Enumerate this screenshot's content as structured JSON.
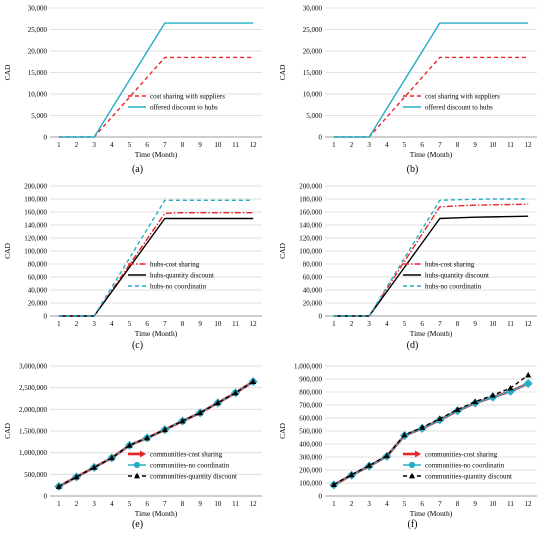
{
  "colors": {
    "red": "#e8262a",
    "cyan": "#23aec6",
    "black": "#000000",
    "grid": "#d9d9d9",
    "axis": "#7f7f7f",
    "diamond_fill": "#f4a0a0",
    "diamond_stroke": "#3aaec8"
  },
  "chart_data": [
    {
      "panel_label": "(a)",
      "type": "line",
      "xlabel": "Time (Month)",
      "ylabel": "CAD",
      "ylim": [
        0,
        30000
      ],
      "yticks": [
        "0",
        "5,000",
        "10,000",
        "15,000",
        "20,000",
        "25,000",
        "30,000"
      ],
      "x": [
        1,
        2,
        3,
        4,
        5,
        6,
        7,
        8,
        9,
        10,
        11,
        12
      ],
      "xticks": [
        "1",
        "2",
        "3",
        "4",
        "5",
        "6",
        "7",
        "8",
        "9",
        "10",
        "11",
        "12"
      ],
      "grid": "horizontal",
      "legend": "bottom-right",
      "series": [
        {
          "name": "cost sharing with suppliers",
          "color": "#e8262a",
          "style": "dashed",
          "values": [
            0,
            0,
            0,
            4625,
            9250,
            13875,
            18500,
            18500,
            18500,
            18500,
            18500,
            18500
          ]
        },
        {
          "name": "offered discount to hubs",
          "color": "#23aec6",
          "style": "solid",
          "values": [
            0,
            0,
            0,
            6625,
            13250,
            19875,
            26500,
            26500,
            26500,
            26500,
            26500,
            26500
          ]
        }
      ]
    },
    {
      "panel_label": "(b)",
      "type": "line",
      "xlabel": "Time (Month)",
      "ylabel": "CAD",
      "ylim": [
        0,
        30000
      ],
      "yticks": [
        "0",
        "5,000",
        "10,000",
        "15,000",
        "20,000",
        "25,000",
        "30,000"
      ],
      "x": [
        1,
        2,
        3,
        4,
        5,
        6,
        7,
        8,
        9,
        10,
        11,
        12
      ],
      "xticks": [
        "1",
        "2",
        "3",
        "4",
        "5",
        "6",
        "7",
        "8",
        "9",
        "10",
        "11",
        "12"
      ],
      "grid": "horizontal",
      "legend": "bottom-right",
      "series": [
        {
          "name": "cost sharing with suppliers",
          "color": "#e8262a",
          "style": "dashed",
          "values": [
            0,
            0,
            0,
            4625,
            9250,
            13875,
            18500,
            18500,
            18500,
            18500,
            18500,
            18500
          ]
        },
        {
          "name": "offered discount to hubs",
          "color": "#23aec6",
          "style": "solid",
          "values": [
            0,
            0,
            0,
            6625,
            13250,
            19875,
            26500,
            26500,
            26500,
            26500,
            26500,
            26500
          ]
        }
      ]
    },
    {
      "panel_label": "(c)",
      "type": "line",
      "xlabel": "Time (Month)",
      "ylabel": "CAD",
      "ylim": [
        0,
        200000
      ],
      "yticks": [
        "0",
        "20,000",
        "40,000",
        "60,000",
        "80,000",
        "100,000",
        "120,000",
        "140,000",
        "160,000",
        "180,000",
        "200,000"
      ],
      "x": [
        1,
        2,
        3,
        4,
        5,
        6,
        7,
        8,
        9,
        10,
        11,
        12
      ],
      "xticks": [
        "1",
        "2",
        "3",
        "4",
        "5",
        "6",
        "7",
        "8",
        "9",
        "10",
        "11",
        "12"
      ],
      "grid": "horizontal",
      "legend": "bottom-right",
      "series": [
        {
          "name": "hubs-cost sharing",
          "color": "#e8262a",
          "style": "dashdot",
          "values": [
            0,
            0,
            0,
            39500,
            79000,
            118500,
            158000,
            159000,
            159000,
            159000,
            159000,
            159000
          ]
        },
        {
          "name": "hubs-quantity discount",
          "color": "#000000",
          "style": "solid",
          "values": [
            0,
            0,
            0,
            37500,
            75000,
            112500,
            150000,
            150000,
            150000,
            150000,
            150000,
            150000
          ]
        },
        {
          "name": "hubs-no coordinatin",
          "color": "#23aec6",
          "style": "dashed",
          "values": [
            0,
            0,
            0,
            44500,
            89000,
            133500,
            178000,
            178000,
            178000,
            178000,
            178000,
            178000
          ]
        }
      ]
    },
    {
      "panel_label": "(d)",
      "type": "line",
      "xlabel": "Time (Month)",
      "ylabel": "CAD",
      "ylim": [
        0,
        200000
      ],
      "yticks": [
        "0",
        "20,000",
        "40,000",
        "60,000",
        "80,000",
        "100,000",
        "120,000",
        "140,000",
        "160,000",
        "180,000",
        "200,000"
      ],
      "x": [
        1,
        2,
        3,
        4,
        5,
        6,
        7,
        8,
        9,
        10,
        11,
        12
      ],
      "xticks": [
        "1",
        "2",
        "3",
        "4",
        "5",
        "6",
        "7",
        "8",
        "9",
        "10",
        "11",
        "12"
      ],
      "grid": "horizontal",
      "legend": "bottom-right",
      "series": [
        {
          "name": "hubs-cost sharing",
          "color": "#e8262a",
          "style": "dashdot",
          "values": [
            0,
            0,
            0,
            42000,
            84000,
            126000,
            168000,
            169500,
            170500,
            171000,
            171500,
            172000
          ]
        },
        {
          "name": "hubs-quantity discount",
          "color": "#000000",
          "style": "solid",
          "values": [
            0,
            0,
            0,
            37500,
            75000,
            112500,
            150000,
            151000,
            152000,
            152500,
            153000,
            153500
          ]
        },
        {
          "name": "hubs-no coordinatin",
          "color": "#23aec6",
          "style": "dashed",
          "values": [
            0,
            0,
            0,
            44500,
            89000,
            133500,
            178000,
            179000,
            179500,
            180000,
            180000,
            180000
          ]
        }
      ]
    },
    {
      "panel_label": "(e)",
      "type": "line",
      "xlabel": "Time (Month)",
      "ylabel": "CAD",
      "ylim": [
        0,
        3000000
      ],
      "yticks": [
        "0",
        "500,000",
        "1,000,000",
        "1,500,000",
        "2,000,000",
        "2,500,000",
        "3,000,000"
      ],
      "x": [
        1,
        2,
        3,
        4,
        5,
        6,
        7,
        8,
        9,
        10,
        11,
        12
      ],
      "xticks": [
        "1",
        "2",
        "3",
        "4",
        "5",
        "6",
        "7",
        "8",
        "9",
        "10",
        "11",
        "12"
      ],
      "grid": "horizontal",
      "legend": "bottom-right",
      "series": [
        {
          "name": "communities-cost sharing",
          "color": "#e8262a",
          "style": "thick",
          "marker": "arrow",
          "values": [
            220000,
            440000,
            660000,
            880000,
            1170000,
            1340000,
            1530000,
            1730000,
            1920000,
            2150000,
            2380000,
            2640000
          ]
        },
        {
          "name": "communities-no coordinatin",
          "color": "#23aec6",
          "style": "solid",
          "marker": "circle",
          "values": [
            220000,
            440000,
            660000,
            880000,
            1170000,
            1340000,
            1530000,
            1730000,
            1920000,
            2150000,
            2380000,
            2640000
          ]
        },
        {
          "name": "communities-quantity discount",
          "color": "#000000",
          "style": "dashed",
          "marker": "triangle",
          "values": [
            220000,
            440000,
            660000,
            880000,
            1170000,
            1340000,
            1530000,
            1730000,
            1920000,
            2150000,
            2380000,
            2640000
          ]
        }
      ]
    },
    {
      "panel_label": "(f)",
      "type": "line",
      "xlabel": "Time (Month)",
      "ylabel": "CAD",
      "ylim": [
        0,
        1000000
      ],
      "yticks": [
        "0",
        "100,000",
        "200,000",
        "300,000",
        "400,000",
        "500,000",
        "600,000",
        "700,000",
        "800,000",
        "900,000",
        "1,000,000"
      ],
      "x": [
        1,
        2,
        3,
        4,
        5,
        6,
        7,
        8,
        9,
        10,
        11,
        12
      ],
      "xticks": [
        "1",
        "2",
        "3",
        "4",
        "5",
        "6",
        "7",
        "8",
        "9",
        "10",
        "11",
        "12"
      ],
      "grid": "horizontal",
      "legend": "bottom-right",
      "series": [
        {
          "name": "communities-cost sharing",
          "color": "#e8262a",
          "style": "thick",
          "marker": "arrow",
          "values": [
            85000,
            160000,
            230000,
            305000,
            465000,
            520000,
            585000,
            655000,
            715000,
            760000,
            805000,
            865000
          ]
        },
        {
          "name": "communities-no coordinatin",
          "color": "#23aec6",
          "style": "solid",
          "marker": "circle",
          "values": [
            85000,
            160000,
            230000,
            305000,
            465000,
            520000,
            585000,
            655000,
            715000,
            760000,
            805000,
            865000
          ]
        },
        {
          "name": "communities-quantity discount",
          "color": "#000000",
          "style": "dashed",
          "marker": "triangle",
          "values": [
            88000,
            163000,
            235000,
            310000,
            470000,
            528000,
            595000,
            665000,
            725000,
            775000,
            830000,
            930000
          ]
        }
      ]
    }
  ]
}
